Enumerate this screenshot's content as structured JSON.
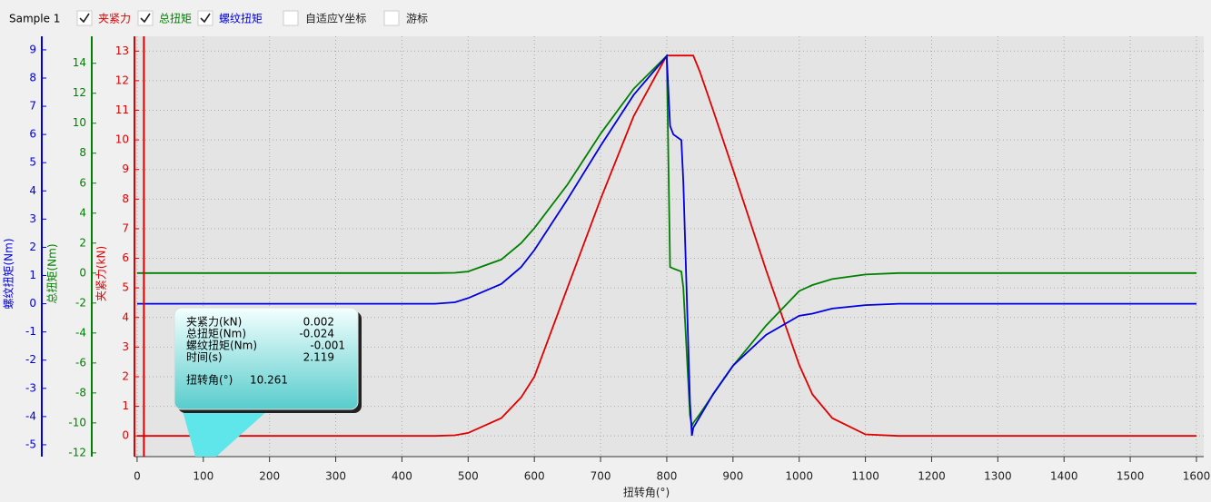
{
  "toolbar": {
    "sample": "Sample 1",
    "items": [
      {
        "label": "夹紧力",
        "checked": true,
        "color": "#e00000"
      },
      {
        "label": "总扭矩",
        "checked": true,
        "color": "#008000"
      },
      {
        "label": "螺纹扭矩",
        "checked": true,
        "color": "#0000e0"
      },
      {
        "label": "自适应Y坐标",
        "checked": false,
        "color": "#222222"
      },
      {
        "label": "游标",
        "checked": false,
        "color": "#222222"
      }
    ]
  },
  "chart_data": {
    "type": "line",
    "x_label": "扭转角(°)",
    "x": [
      0,
      450,
      480,
      500,
      550,
      580,
      600,
      650,
      700,
      750,
      800,
      805,
      810,
      822,
      825,
      835,
      838,
      840,
      850,
      870,
      900,
      950,
      1000,
      1020,
      1050,
      1100,
      1150,
      1600
    ],
    "series": [
      {
        "name": "夹紧力(kN)",
        "color": "#e00000",
        "axis": "y",
        "values": [
          0,
          0,
          0.02,
          0.1,
          0.6,
          1.3,
          2.0,
          5.0,
          8.0,
          10.8,
          12.85,
          12.85,
          12.85,
          12.85,
          12.85,
          12.85,
          12.85,
          12.85,
          12.3,
          11.0,
          9.0,
          5.6,
          2.4,
          1.4,
          0.6,
          0.05,
          0,
          0
        ]
      },
      {
        "name": "总扭矩(Nm)",
        "color": "#008000",
        "axis": "y2",
        "values": [
          0,
          0,
          0.02,
          0.1,
          0.9,
          2.0,
          3.0,
          5.9,
          9.3,
          12.3,
          14.5,
          0.4,
          0.3,
          0.1,
          -1,
          -9.5,
          -10.2,
          -10.0,
          -9.4,
          -8.1,
          -6.2,
          -3.5,
          -1.2,
          -0.8,
          -0.4,
          -0.1,
          0,
          0
        ]
      },
      {
        "name": "螺纹扭矩(Nm)",
        "color": "#0000e0",
        "axis": "y3",
        "values": [
          0,
          0,
          0.05,
          0.2,
          0.7,
          1.3,
          1.9,
          3.7,
          5.6,
          7.4,
          8.78,
          6.3,
          6.0,
          5.8,
          4.3,
          -3.5,
          -4.68,
          -4.4,
          -4.0,
          -3.2,
          -2.2,
          -1.1,
          -0.43,
          -0.35,
          -0.17,
          -0.05,
          0,
          0
        ]
      }
    ],
    "xlim": [
      -4,
      1611
    ],
    "xticks": [
      0,
      100,
      200,
      300,
      400,
      500,
      600,
      700,
      800,
      900,
      1000,
      1100,
      1200,
      1300,
      1400,
      1500,
      1600
    ],
    "ylim": [
      -0.7,
      13.5
    ],
    "yticks": [
      0,
      1,
      2,
      3,
      4,
      5,
      6,
      7,
      8,
      9,
      10,
      11,
      12,
      13
    ],
    "y2lim": [
      -12.25,
      15.8
    ],
    "y2ticks": [
      -12,
      -10,
      -8,
      -6,
      -4,
      -2,
      0,
      2,
      4,
      6,
      8,
      10,
      12,
      14
    ],
    "y3lim": [
      -5.42,
      9.48
    ],
    "y3ticks": [
      -5,
      -4,
      -3,
      -2,
      -1,
      0,
      1,
      2,
      3,
      4,
      5,
      6,
      7,
      8,
      9
    ],
    "grid": true
  },
  "tooltip": {
    "rows": [
      {
        "label": "夹紧力(kN)",
        "value": 0.002
      },
      {
        "label": "总扭矩(Nm)",
        "value": -0.024
      },
      {
        "label": "螺纹扭矩(Nm)",
        "value": -0.001
      },
      {
        "label": "时间(s)",
        "value": 2.119
      }
    ],
    "angle_label": "扭转角(°)",
    "angle": 10.261
  }
}
